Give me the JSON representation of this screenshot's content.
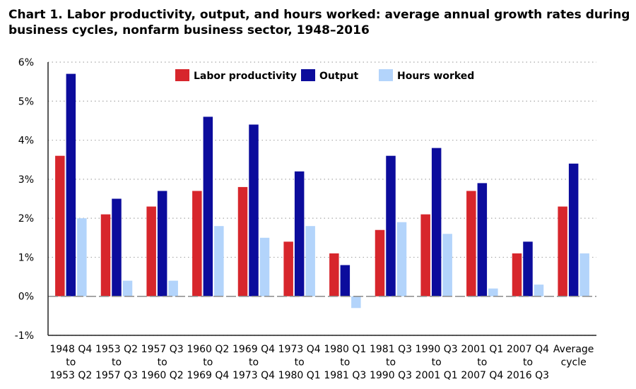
{
  "page": {
    "title_line1": "Chart 1. Labor productivity, output, and hours worked: average annual growth rates during",
    "title_line2": "business cycles, nonfarm business sector, 1948–2016"
  },
  "chart_data": {
    "type": "bar",
    "title": "Chart 1. Labor productivity, output, and hours worked: average annual growth rates during business cycles, nonfarm business sector, 1948–2016",
    "xlabel": "",
    "ylabel": "",
    "ylim": [
      -1,
      6
    ],
    "y_ticks": [
      -1,
      0,
      1,
      2,
      3,
      4,
      5,
      6
    ],
    "y_tick_labels": [
      "-1%",
      "0%",
      "1%",
      "2%",
      "3%",
      "4%",
      "5%",
      "6%"
    ],
    "grid": true,
    "legend_position": "top-center",
    "categories": [
      [
        "1948 Q4",
        "to",
        "1953 Q2"
      ],
      [
        "1953 Q2",
        "to",
        "1957 Q3"
      ],
      [
        "1957 Q3",
        "to",
        "1960 Q2"
      ],
      [
        "1960 Q2",
        "to",
        "1969 Q4"
      ],
      [
        "1969 Q4",
        "to",
        "1973 Q4"
      ],
      [
        "1973 Q4",
        "to",
        "1980 Q1"
      ],
      [
        "1980 Q1",
        "to",
        "1981 Q3"
      ],
      [
        "1981 Q3",
        "to",
        "1990 Q3"
      ],
      [
        "1990 Q3",
        "to",
        "2001 Q1"
      ],
      [
        "2001 Q1",
        "to",
        "2007 Q4"
      ],
      [
        "2007 Q4",
        "to",
        "2016 Q3"
      ],
      [
        "Average",
        "cycle"
      ]
    ],
    "series": [
      {
        "name": "Labor productivity",
        "color": "#d7262c",
        "values": [
          3.6,
          2.1,
          2.3,
          2.7,
          2.8,
          1.4,
          1.1,
          1.7,
          2.1,
          2.7,
          1.1,
          2.3
        ]
      },
      {
        "name": "Output",
        "color": "#0c0c9c",
        "values": [
          5.7,
          2.5,
          2.7,
          4.6,
          4.4,
          3.2,
          0.8,
          3.6,
          3.8,
          2.9,
          1.4,
          3.4
        ]
      },
      {
        "name": "Hours worked",
        "color": "#b3d4fb",
        "values": [
          2.0,
          0.4,
          0.4,
          1.8,
          1.5,
          1.8,
          -0.3,
          1.9,
          1.6,
          0.2,
          0.3,
          1.1
        ]
      }
    ]
  }
}
